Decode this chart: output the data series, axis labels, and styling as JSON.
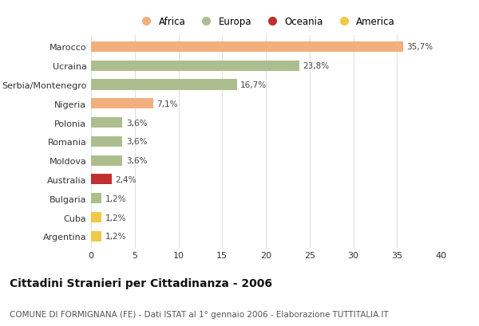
{
  "countries": [
    "Marocco",
    "Ucraina",
    "Serbia/Montenegro",
    "Nigeria",
    "Polonia",
    "Romania",
    "Moldova",
    "Australia",
    "Bulgaria",
    "Cuba",
    "Argentina"
  ],
  "values": [
    35.7,
    23.8,
    16.7,
    7.1,
    3.6,
    3.6,
    3.6,
    2.4,
    1.2,
    1.2,
    1.2
  ],
  "labels": [
    "35,7%",
    "23,8%",
    "16,7%",
    "7,1%",
    "3,6%",
    "3,6%",
    "3,6%",
    "2,4%",
    "1,2%",
    "1,2%",
    "1,2%"
  ],
  "continents": [
    "Africa",
    "Europa",
    "Europa",
    "Africa",
    "Europa",
    "Europa",
    "Europa",
    "Oceania",
    "Europa",
    "America",
    "America"
  ],
  "colors": {
    "Africa": "#F2AF7E",
    "Europa": "#ADBE8E",
    "Oceania": "#C03030",
    "America": "#F0C84A"
  },
  "xlim": [
    0,
    40
  ],
  "xticks": [
    0,
    5,
    10,
    15,
    20,
    25,
    30,
    35,
    40
  ],
  "title": "Cittadini Stranieri per Cittadinanza - 2006",
  "subtitle": "COMUNE DI FORMIGNANA (FE) - Dati ISTAT al 1° gennaio 2006 - Elaborazione TUTTITALIA.IT",
  "background_color": "#FFFFFF",
  "grid_color": "#E0E0E0",
  "bar_height": 0.55,
  "legend_order": [
    "Africa",
    "Europa",
    "Oceania",
    "America"
  ],
  "label_fontsize": 7.5,
  "ytick_fontsize": 8,
  "xtick_fontsize": 8,
  "title_fontsize": 10,
  "subtitle_fontsize": 7.5
}
